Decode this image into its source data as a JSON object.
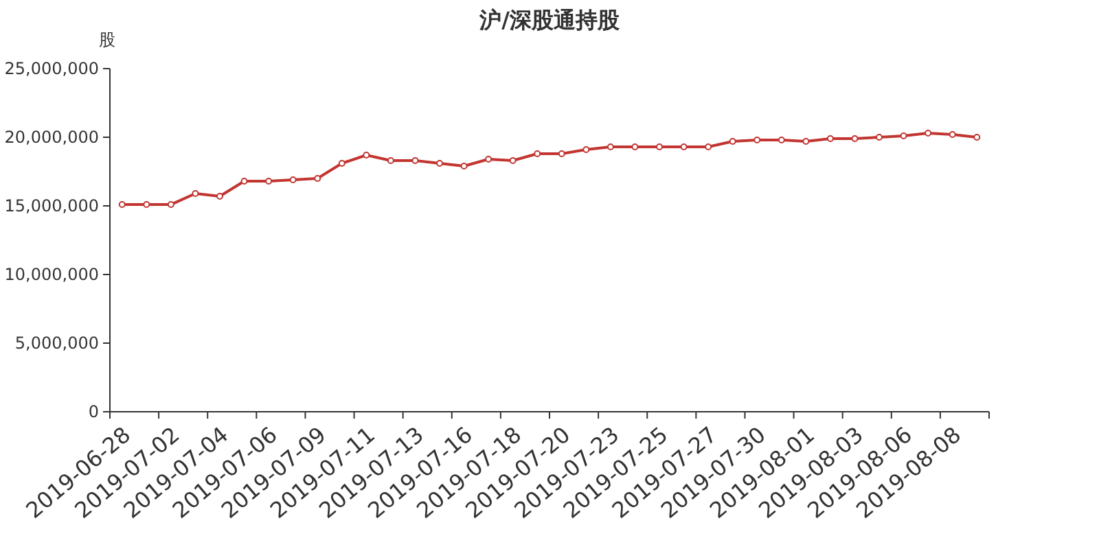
{
  "chart_data": {
    "type": "line",
    "title": "沪/深股通持股",
    "ylabel": "股",
    "categories": [
      "2019-06-28",
      null,
      "2019-07-02",
      null,
      "2019-07-04",
      null,
      "2019-07-06",
      null,
      "2019-07-09",
      null,
      "2019-07-11",
      null,
      "2019-07-13",
      null,
      "2019-07-16",
      null,
      "2019-07-18",
      null,
      "2019-07-20",
      null,
      "2019-07-23",
      null,
      "2019-07-25",
      null,
      "2019-07-27",
      null,
      "2019-07-30",
      null,
      "2019-08-01",
      null,
      "2019-08-03",
      null,
      "2019-08-06",
      null,
      "2019-08-08",
      null
    ],
    "series": [
      {
        "color": "#c23531",
        "values": [
          15100000,
          15100000,
          15100000,
          15900000,
          15700000,
          16800000,
          16800000,
          16900000,
          17000000,
          18100000,
          18700000,
          18300000,
          18300000,
          18100000,
          17900000,
          18400000,
          18300000,
          18800000,
          18800000,
          19100000,
          19300000,
          19300000,
          19300000,
          19300000,
          19300000,
          19700000,
          19800000,
          19800000,
          19700000,
          19900000,
          19900000,
          20000000,
          20100000,
          20300000,
          20200000,
          20000000
        ]
      }
    ],
    "ylim": [
      0,
      25000000
    ],
    "yticks": [
      {
        "value": 0,
        "label": "0"
      },
      {
        "value": 5000000,
        "label": "5,000,000"
      },
      {
        "value": 10000000,
        "label": "10,000,000"
      },
      {
        "value": 15000000,
        "label": "15,000,000"
      },
      {
        "value": 20000000,
        "label": "20,000,000"
      },
      {
        "value": 25000000,
        "label": "25,000,000"
      }
    ],
    "marker": "circle"
  }
}
